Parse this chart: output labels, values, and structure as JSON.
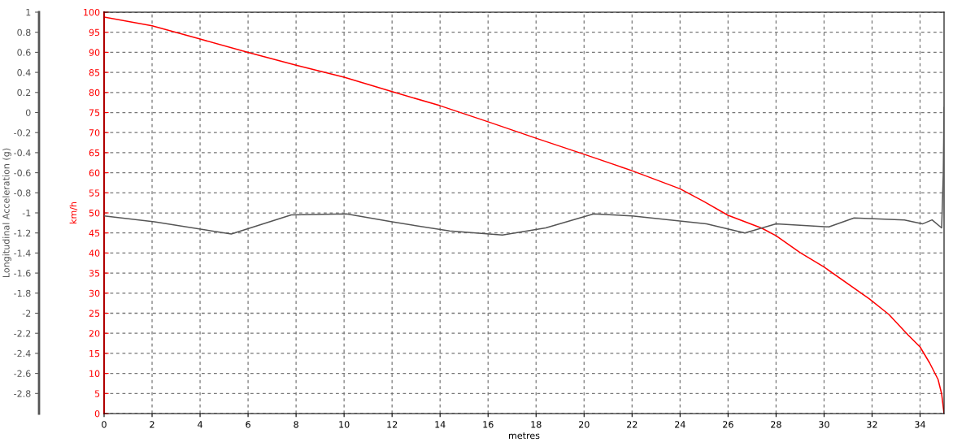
{
  "chart_data": {
    "type": "line",
    "xlabel": "metres",
    "ylabel": "km/h",
    "y2label": "Longitudinal Acceleration (g)",
    "xlim": [
      0,
      35
    ],
    "xticks": [
      0,
      2,
      4,
      6,
      8,
      10,
      12,
      14,
      16,
      18,
      20,
      22,
      24,
      26,
      28,
      30,
      32,
      34
    ],
    "ylim": [
      0,
      100
    ],
    "yticks": [
      0,
      5,
      10,
      15,
      20,
      25,
      30,
      35,
      40,
      45,
      50,
      55,
      60,
      65,
      70,
      75,
      80,
      85,
      90,
      95,
      100
    ],
    "y2lim": [
      -3,
      1
    ],
    "y2ticks": [
      -2.8,
      -2.6,
      -2.4,
      -2.2,
      -2,
      -1.8,
      -1.6,
      -1.4,
      -1.2,
      -1,
      -0.8,
      -0.6,
      -0.4,
      -0.2,
      0,
      0.2,
      0.4,
      0.6,
      0.8,
      1
    ],
    "grid": true,
    "line_style": "solid",
    "marker": "none",
    "series": [
      {
        "color": "#ff0000",
        "x": [
          0,
          2,
          4,
          6,
          8,
          10,
          12,
          14,
          16,
          18,
          20,
          22,
          24,
          25,
          26,
          27.4,
          28,
          29,
          30,
          31.9,
          32.7,
          33.5,
          34,
          34.4,
          34.75,
          34.9,
          35
        ],
        "values": [
          98.8,
          96.6,
          93.3,
          90,
          86.8,
          83.8,
          80.2,
          76.7,
          72.7,
          68.6,
          64.6,
          60.5,
          56,
          52.8,
          49.4,
          46.2,
          44.3,
          40.1,
          36.5,
          28.5,
          24.7,
          19.6,
          16.6,
          12.6,
          8.5,
          4.9,
          0
        ]
      },
      {
        "color": "#555555",
        "axis": "y2",
        "x": [
          0,
          2.1,
          5.3,
          7.8,
          10.1,
          12,
          14.4,
          16.6,
          18.4,
          20.4,
          22,
          25.1,
          26.7,
          28,
          30.2,
          31.25,
          33.35,
          34.1,
          34.5,
          34.9,
          34.97,
          35
        ],
        "values": [
          -1.03,
          -1.09,
          -1.21,
          -1.02,
          -1.01,
          -1.09,
          -1.18,
          -1.22,
          -1.15,
          -1.01,
          -1.03,
          -1.11,
          -1.2,
          -1.11,
          -1.14,
          -1.05,
          -1.07,
          -1.11,
          -1.07,
          -1.15,
          -0.6,
          0.05
        ]
      }
    ]
  }
}
